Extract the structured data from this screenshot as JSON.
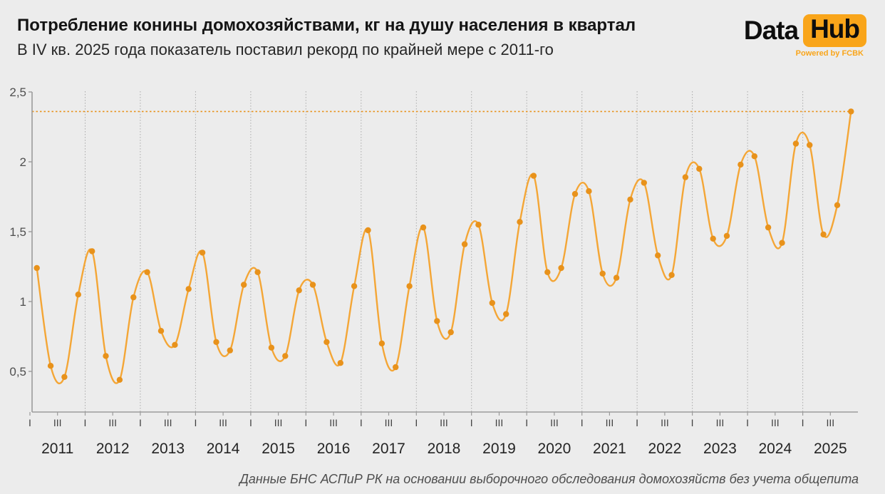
{
  "header": {
    "title": "Потребление конины домохозяйствами, кг на душу населения в квартал",
    "subtitle": "В IV кв. 2025 года показатель поставил рекорд по крайней мере с 2011-го"
  },
  "logo": {
    "part1": "Data",
    "part2": "Hub",
    "tagline": "Powered by FCBK",
    "accent_color": "#f9a51a"
  },
  "footer": {
    "source": "Данные БНС АСПиР РК на основании выборочного обследования домохозяйств без учета общепита"
  },
  "colors": {
    "background": "#ececec",
    "line": "#f4a636",
    "marker": "#e8921b",
    "record_line": "#e8921b",
    "axis": "#9b9b9b",
    "gridline": "#aaaaaa",
    "y_tick_label": "#4f4f4f",
    "quarter_label": "#3f3f3f",
    "year_label": "#242424"
  },
  "chart_data": {
    "type": "line",
    "title": "Потребление конины домохозяйствами, кг на душу населения в квартал",
    "subtitle": "В IV кв. 2025 года показатель поставил рекорд по крайней мере с 2011-го",
    "xlabel": "",
    "ylabel": "",
    "ylim": [
      0.2,
      2.5
    ],
    "y_ticks": [
      {
        "value": 2.5,
        "label": "2,5"
      },
      {
        "value": 2.0,
        "label": "2"
      },
      {
        "value": 1.5,
        "label": "1,5"
      },
      {
        "value": 1.0,
        "label": "1"
      },
      {
        "value": 0.5,
        "label": "0,5"
      }
    ],
    "grid": "vertical dotted lines at year boundaries",
    "legend": "none",
    "quarter_tick_labels": [
      "I",
      "III"
    ],
    "years": [
      2011,
      2012,
      2013,
      2014,
      2015,
      2016,
      2017,
      2018,
      2019,
      2020,
      2021,
      2022,
      2023,
      2024,
      2025
    ],
    "quarters_per_year": 4,
    "values": [
      1.24,
      0.54,
      0.46,
      1.05,
      1.36,
      0.61,
      0.44,
      1.03,
      1.21,
      0.79,
      0.69,
      1.09,
      1.35,
      0.71,
      0.65,
      1.12,
      1.21,
      0.67,
      0.61,
      1.08,
      1.12,
      0.71,
      0.56,
      1.11,
      1.51,
      0.7,
      0.53,
      1.11,
      1.53,
      0.86,
      0.78,
      1.41,
      1.55,
      0.99,
      0.91,
      1.57,
      1.9,
      1.21,
      1.24,
      1.77,
      1.79,
      1.2,
      1.17,
      1.73,
      1.85,
      1.33,
      1.19,
      1.89,
      1.95,
      1.45,
      1.47,
      1.98,
      2.04,
      1.53,
      1.42,
      2.13,
      2.12,
      1.48,
      1.69,
      2.36
    ],
    "record_line": {
      "value": 2.36,
      "style": "dotted",
      "ends_at_last_point": true
    }
  }
}
